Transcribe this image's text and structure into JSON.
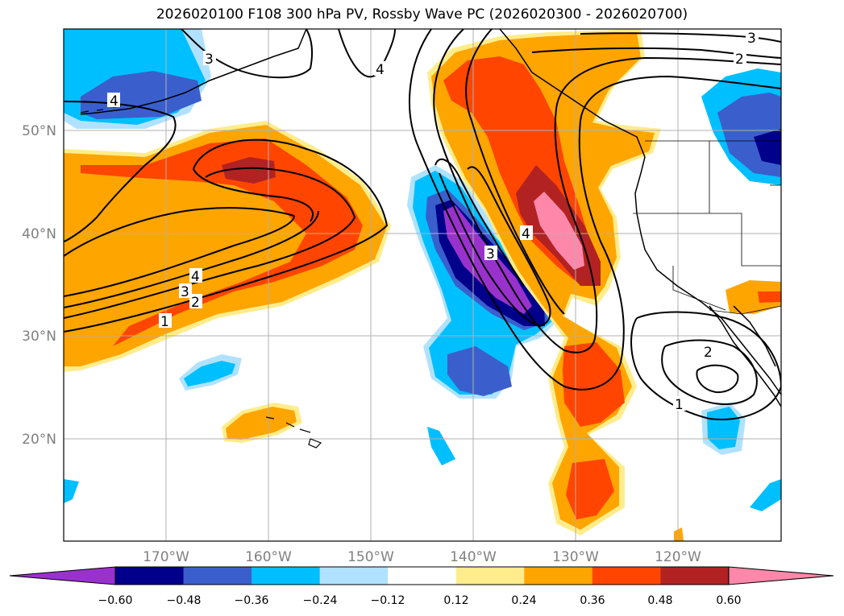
{
  "title": "2026020100 F108 300 hPa PV, Rossby Wave PC (2026020300 - 2026020700)",
  "latitude_labels": [
    "50°N",
    "40°N",
    "30°N",
    "20°N"
  ],
  "longitude_labels": [
    "170°W",
    "160°W",
    "150°W",
    "140°W",
    "130°W",
    "120°W"
  ],
  "colorbar": {
    "labels": [
      "−0.60",
      "−0.48",
      "−0.36",
      "−0.24",
      "−0.12",
      "0.12",
      "0.24",
      "0.36",
      "0.48",
      "0.60"
    ],
    "colors": [
      "#9932cc",
      "#00008b",
      "#3a5fcd",
      "#00bfff",
      "#b0e2ff",
      "#ffffff",
      "#ffec8b",
      "#ffa500",
      "#ff4500",
      "#b22222",
      "#ff88aa"
    ]
  },
  "contour_labels": [
    "4",
    "4",
    "4",
    "3",
    "3",
    "3",
    "3",
    "2",
    "2",
    "2",
    "1",
    "1",
    "4"
  ],
  "colors": {
    "land_line": "#000000",
    "grid": "#b0b0b0",
    "contour": "#000000"
  }
}
